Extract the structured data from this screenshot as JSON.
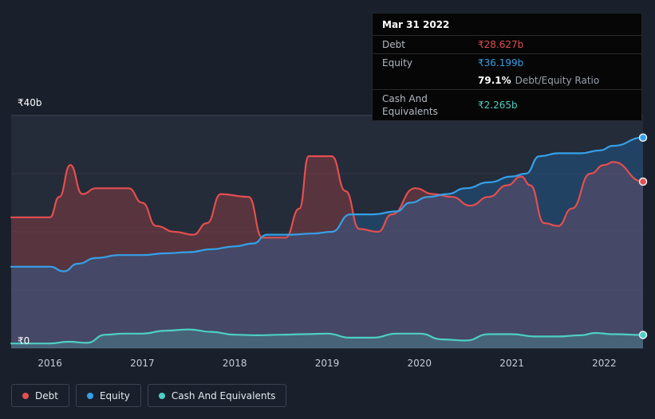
{
  "tooltip": {
    "date": "Mar 31 2022",
    "debt_label": "Debt",
    "debt_value": "₹28.627b",
    "equity_label": "Equity",
    "equity_value": "₹36.199b",
    "ratio_value": "79.1%",
    "ratio_label": "Debt/Equity Ratio",
    "cash_label": "Cash And Equivalents",
    "cash_value": "₹2.265b"
  },
  "axis": {
    "y_top": "₹40b",
    "y_bottom": "₹0"
  },
  "legend": [
    {
      "label": "Debt",
      "color": "#e34f4f"
    },
    {
      "label": "Equity",
      "color": "#35a0e8"
    },
    {
      "label": "Cash And Equivalents",
      "color": "#4ecfc4"
    }
  ],
  "colors": {
    "page_bg": "#19202b",
    "plot_bg": "#242b39",
    "debt": "#e34f4f",
    "equity": "#35a0e8",
    "cash": "#4ecfc4",
    "grid_strong": "#3d4557",
    "grid_faint": "rgba(255,255,255,0.05)"
  },
  "chart_data": {
    "type": "area",
    "title": "Debt to Equity history",
    "x_range": [
      2015.58,
      2022.42
    ],
    "y_range": [
      0,
      40
    ],
    "y_tick_labels": [
      "₹0",
      "₹40b"
    ],
    "x_ticks": [
      "2016",
      "2017",
      "2018",
      "2019",
      "2020",
      "2021",
      "2022"
    ],
    "x_tick_positions": [
      2016,
      2017,
      2018,
      2019,
      2020,
      2021,
      2022
    ],
    "gridlines_minor": [
      10,
      20,
      30
    ],
    "legend_position": "bottom-left",
    "series": [
      {
        "name": "Debt",
        "color": "#e34f4f",
        "fill": "rgba(224,75,75,0.28)",
        "x": [
          2015.58,
          2016.0,
          2016.1,
          2016.22,
          2016.35,
          2016.5,
          2016.85,
          2017.0,
          2017.15,
          2017.35,
          2017.55,
          2017.7,
          2017.85,
          2018.15,
          2018.3,
          2018.55,
          2018.7,
          2018.8,
          2019.05,
          2019.2,
          2019.35,
          2019.55,
          2019.7,
          2019.95,
          2020.15,
          2020.35,
          2020.55,
          2020.75,
          2020.95,
          2021.1,
          2021.2,
          2021.35,
          2021.5,
          2021.65,
          2021.85,
          2022.0,
          2022.1,
          2022.42
        ],
        "values": [
          22.5,
          22.5,
          26,
          31.5,
          26.5,
          27.5,
          27.5,
          25,
          21,
          20,
          19.5,
          21.5,
          26.5,
          26,
          19,
          19,
          24,
          33,
          33,
          27,
          20.5,
          20,
          23,
          27.5,
          26.5,
          26,
          24.5,
          26,
          28,
          29.5,
          28,
          21.5,
          21,
          24,
          30,
          31.5,
          32,
          28.627
        ]
      },
      {
        "name": "Equity",
        "color": "#35a0e8",
        "fill": "rgba(31,111,181,0.34)",
        "x": [
          2015.58,
          2016.0,
          2016.15,
          2016.3,
          2016.5,
          2016.75,
          2017.0,
          2017.25,
          2017.5,
          2017.75,
          2018.0,
          2018.2,
          2018.35,
          2018.6,
          2018.85,
          2019.05,
          2019.25,
          2019.5,
          2019.75,
          2019.9,
          2020.1,
          2020.3,
          2020.5,
          2020.75,
          2021.0,
          2021.15,
          2021.3,
          2021.5,
          2021.75,
          2021.95,
          2022.1,
          2022.42
        ],
        "values": [
          14,
          14,
          13.2,
          14.5,
          15.5,
          16,
          16,
          16.3,
          16.5,
          17,
          17.5,
          18,
          19.5,
          19.5,
          19.7,
          20,
          23,
          23,
          23.5,
          25,
          26,
          26.5,
          27.5,
          28.5,
          29.5,
          30,
          33,
          33.5,
          33.5,
          34,
          34.8,
          36.199
        ]
      },
      {
        "name": "Cash And Equivalents",
        "color": "#4ecfc4",
        "fill": "rgba(79,208,195,0.20)",
        "x": [
          2015.58,
          2016.0,
          2016.2,
          2016.4,
          2016.6,
          2016.8,
          2017.0,
          2017.25,
          2017.5,
          2017.75,
          2018.0,
          2018.25,
          2018.5,
          2018.75,
          2019.0,
          2019.25,
          2019.5,
          2019.75,
          2020.0,
          2020.25,
          2020.5,
          2020.75,
          2021.0,
          2021.25,
          2021.5,
          2021.75,
          2021.9,
          2022.1,
          2022.42
        ],
        "values": [
          0.8,
          0.8,
          1.1,
          0.9,
          2.3,
          2.5,
          2.5,
          3.0,
          3.2,
          2.8,
          2.3,
          2.2,
          2.3,
          2.4,
          2.5,
          1.8,
          1.8,
          2.5,
          2.5,
          1.5,
          1.3,
          2.4,
          2.4,
          2.0,
          2.0,
          2.2,
          2.6,
          2.4,
          2.265
        ]
      }
    ]
  }
}
